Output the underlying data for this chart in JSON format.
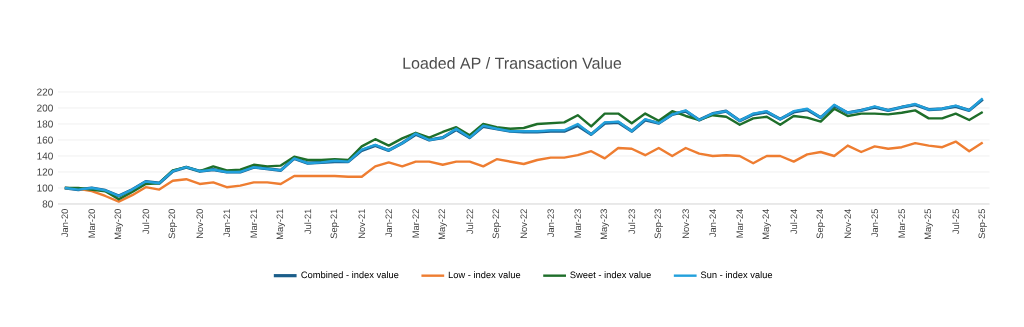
{
  "chart_data": {
    "type": "line",
    "title": "Loaded AP / Transaction Value",
    "categories": [
      "Jan-20",
      null,
      "Mar-20",
      null,
      "May-20",
      null,
      "Jul-20",
      null,
      "Sep-20",
      null,
      "Nov-20",
      null,
      "Jan-21",
      null,
      "Mar-21",
      null,
      "May-21",
      null,
      "Jul-21",
      null,
      "Sep-21",
      null,
      "Nov-21",
      null,
      "Jan-22",
      null,
      "Mar-22",
      null,
      "May-22",
      null,
      "Jul-22",
      null,
      "Sep-22",
      null,
      "Nov-22",
      null,
      "Jan-23",
      null,
      "Mar-23",
      null,
      "May-23",
      null,
      "Jul-23",
      null,
      "Sep-23",
      null,
      "Nov-23",
      null,
      "Jan-24",
      null,
      "Mar-24",
      null,
      "May-24",
      null,
      "Jul-24",
      null,
      "Sep-24",
      null,
      "Nov-24",
      null,
      "Jan-25",
      null,
      "Mar-25",
      null,
      "May-25",
      null,
      "Jul-25",
      null,
      "Sep-25"
    ],
    "series": [
      {
        "name": "Combined - index value",
        "color": "#1b5e8a",
        "values": [
          100,
          98,
          100,
          97,
          90,
          98,
          108,
          106,
          121,
          126,
          121,
          123,
          120,
          120,
          126,
          124,
          122,
          137,
          131,
          132,
          133,
          133,
          147,
          153,
          147,
          156,
          167,
          160,
          163,
          173,
          163,
          177,
          174,
          171,
          170,
          170,
          171,
          171,
          178,
          167,
          181,
          182,
          171,
          185,
          181,
          192,
          196,
          185,
          193,
          196,
          184,
          192,
          195,
          186,
          195,
          198,
          188,
          203,
          194,
          197,
          201,
          197,
          201,
          204,
          198,
          199,
          202,
          197,
          211
        ]
      },
      {
        "name": "Low - index value",
        "color": "#ee7d31",
        "values": [
          100,
          99,
          96,
          90,
          83,
          91,
          101,
          98,
          109,
          111,
          105,
          107,
          101,
          103,
          107,
          107,
          105,
          115,
          115,
          115,
          115,
          114,
          114,
          127,
          132,
          127,
          133,
          133,
          129,
          133,
          133,
          127,
          136,
          133,
          130,
          135,
          138,
          138,
          141,
          146,
          137,
          150,
          149,
          141,
          150,
          140,
          150,
          143,
          140,
          141,
          140,
          131,
          140,
          140,
          133,
          142,
          145,
          140,
          153,
          145,
          152,
          149,
          151,
          156,
          153,
          151,
          158,
          146,
          157
        ]
      },
      {
        "name": "Sweet - index value",
        "color": "#1e6e2a",
        "values": [
          100,
          100,
          null,
          96,
          86,
          95,
          105,
          106,
          122,
          126,
          121,
          127,
          122,
          123,
          129,
          127,
          128,
          139,
          135,
          135,
          136,
          135,
          152,
          161,
          153,
          162,
          169,
          163,
          170,
          176,
          166,
          180,
          176,
          174,
          175,
          180,
          181,
          182,
          191,
          177,
          193,
          193,
          181,
          193,
          184,
          196,
          190,
          185,
          191,
          189,
          179,
          187,
          189,
          179,
          190,
          188,
          183,
          199,
          190,
          193,
          193,
          192,
          194,
          197,
          187,
          187,
          193,
          185,
          195
        ]
      },
      {
        "name": "Sun - index value",
        "color": "#22a0dc",
        "values": [
          100,
          98,
          100,
          97,
          90,
          98,
          108,
          106,
          121,
          126,
          121,
          123,
          120,
          120,
          126,
          124,
          122,
          137,
          131,
          132,
          134,
          133,
          148,
          154,
          147,
          156,
          168,
          160,
          163,
          174,
          163,
          178,
          174,
          171,
          171,
          171,
          172,
          172,
          180,
          167,
          182,
          183,
          171,
          186,
          181,
          192,
          197,
          185,
          193,
          196,
          184,
          193,
          196,
          186,
          196,
          199,
          188,
          204,
          194,
          197,
          202,
          197,
          201,
          205,
          198,
          199,
          203,
          197,
          212
        ]
      }
    ],
    "ylim": [
      80,
      220
    ],
    "yticks": [
      80,
      100,
      120,
      140,
      160,
      180,
      200,
      220
    ],
    "grid": "y",
    "legend": "bottom",
    "marker": "none",
    "line_style": "solid"
  }
}
